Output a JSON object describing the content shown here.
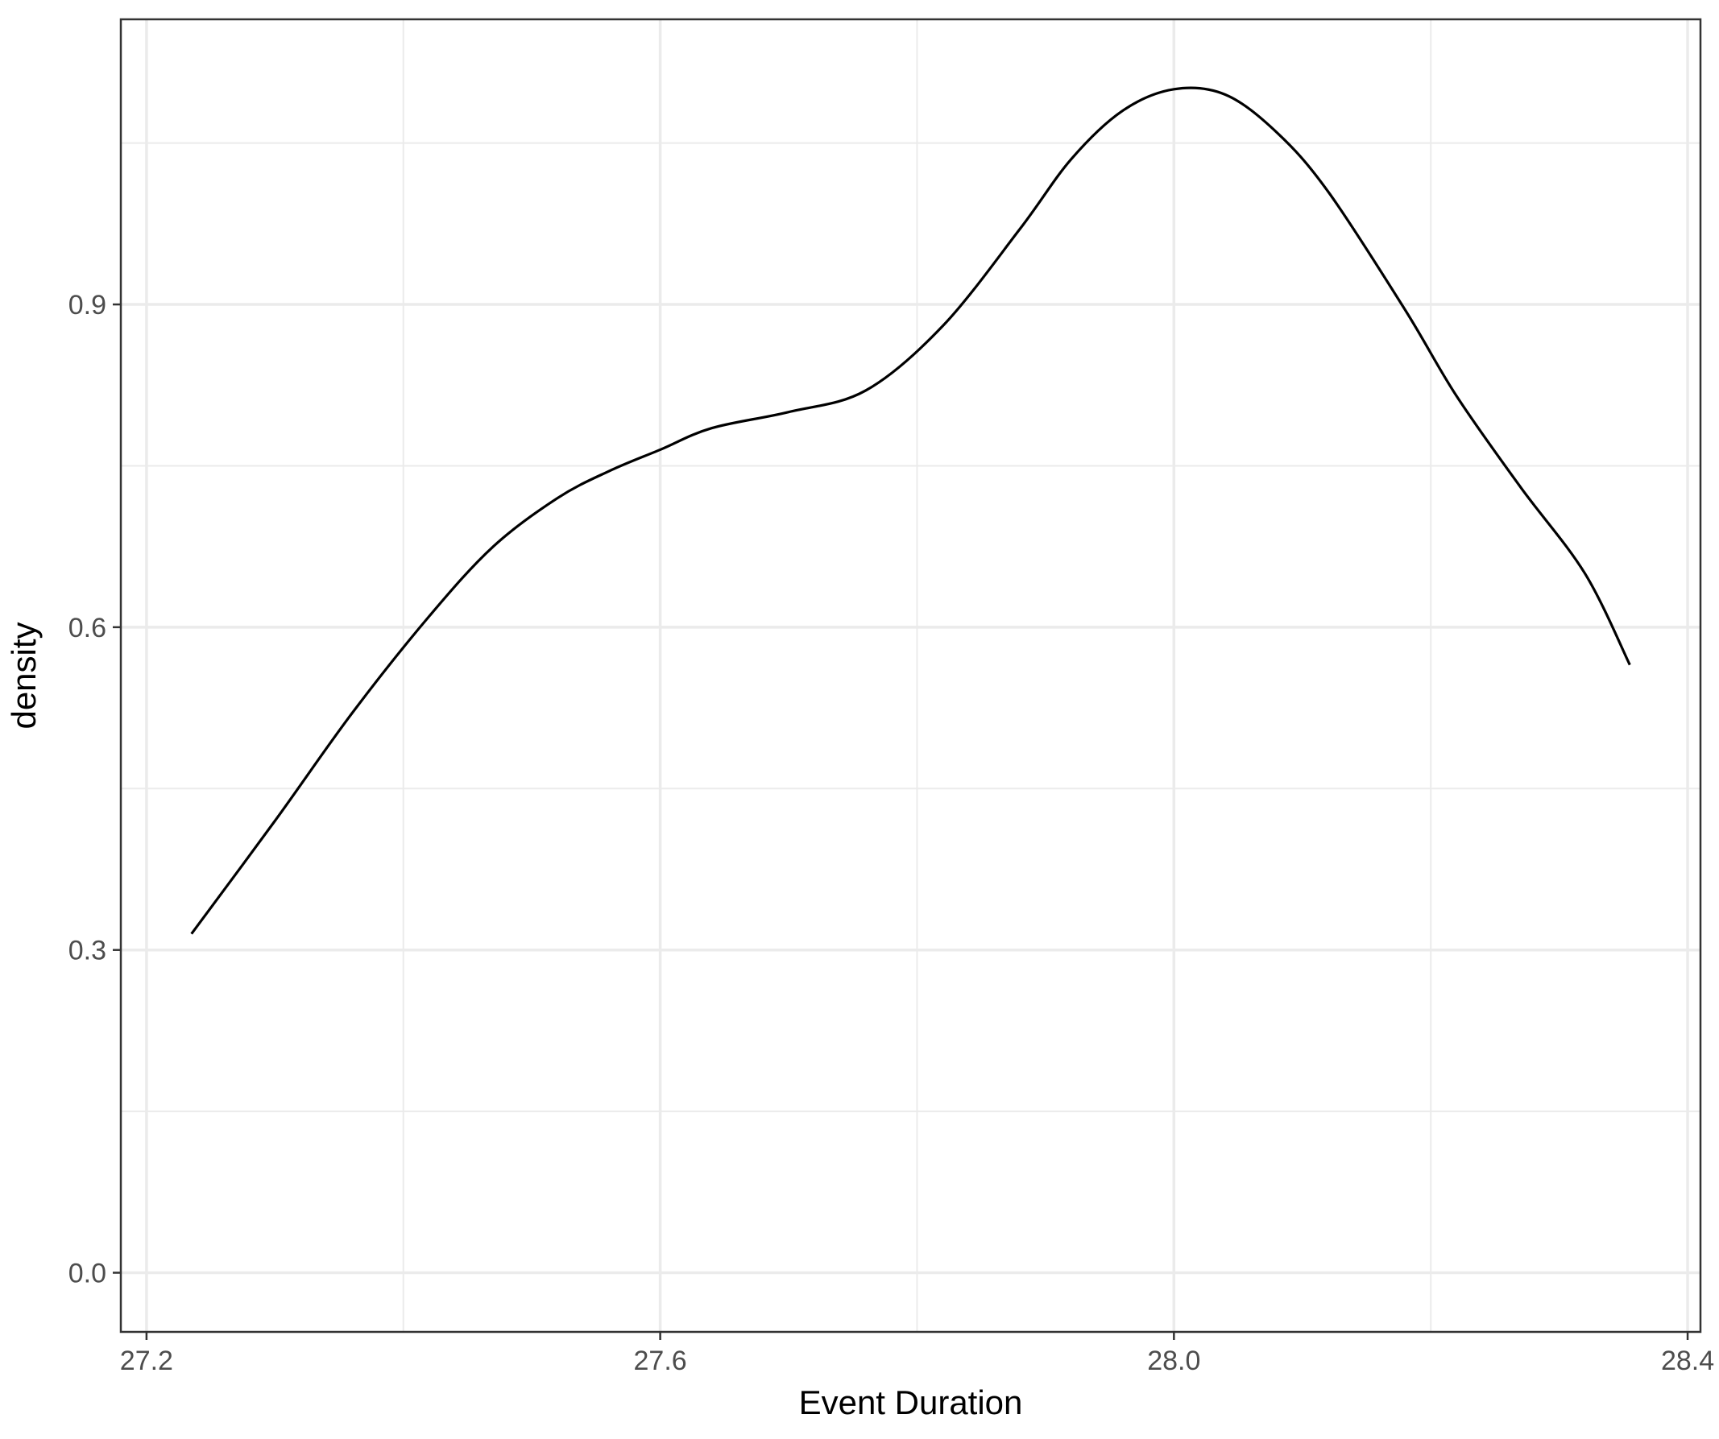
{
  "chart_data": {
    "type": "line",
    "title": "",
    "xlabel": "Event Duration",
    "ylabel": "density",
    "xlim": [
      27.18,
      28.41
    ],
    "ylim": [
      -0.055,
      1.165
    ],
    "x_ticks": [
      27.2,
      27.6,
      28.0,
      28.4
    ],
    "x_tick_labels": [
      "27.2",
      "27.6",
      "28.0",
      "28.4"
    ],
    "y_ticks": [
      0.0,
      0.3,
      0.6,
      0.9
    ],
    "y_tick_labels": [
      "0.0",
      "0.3",
      "0.6",
      "0.9"
    ],
    "x_minor_ticks": [
      27.4,
      27.8,
      28.2
    ],
    "y_minor_ticks": [
      0.15,
      0.45,
      0.75,
      1.05
    ],
    "grid": true,
    "legend": "none",
    "colors": {
      "line": "#000000",
      "grid": "#ebebeb",
      "panel_border": "#333333",
      "background": "#ffffff"
    },
    "series": [
      {
        "x": [
          27.235,
          27.3,
          27.36,
          27.42,
          27.47,
          27.52,
          27.56,
          27.6,
          27.64,
          27.7,
          27.76,
          27.82,
          27.88,
          27.92,
          27.96,
          28.0,
          28.04,
          28.08,
          28.12,
          28.18,
          28.22,
          28.27,
          28.32,
          28.355
        ],
        "y": [
          0.315,
          0.42,
          0.52,
          0.61,
          0.675,
          0.72,
          0.745,
          0.765,
          0.785,
          0.8,
          0.82,
          0.88,
          0.97,
          1.035,
          1.08,
          1.1,
          1.095,
          1.06,
          1.005,
          0.895,
          0.815,
          0.73,
          0.65,
          0.565
        ]
      }
    ]
  }
}
